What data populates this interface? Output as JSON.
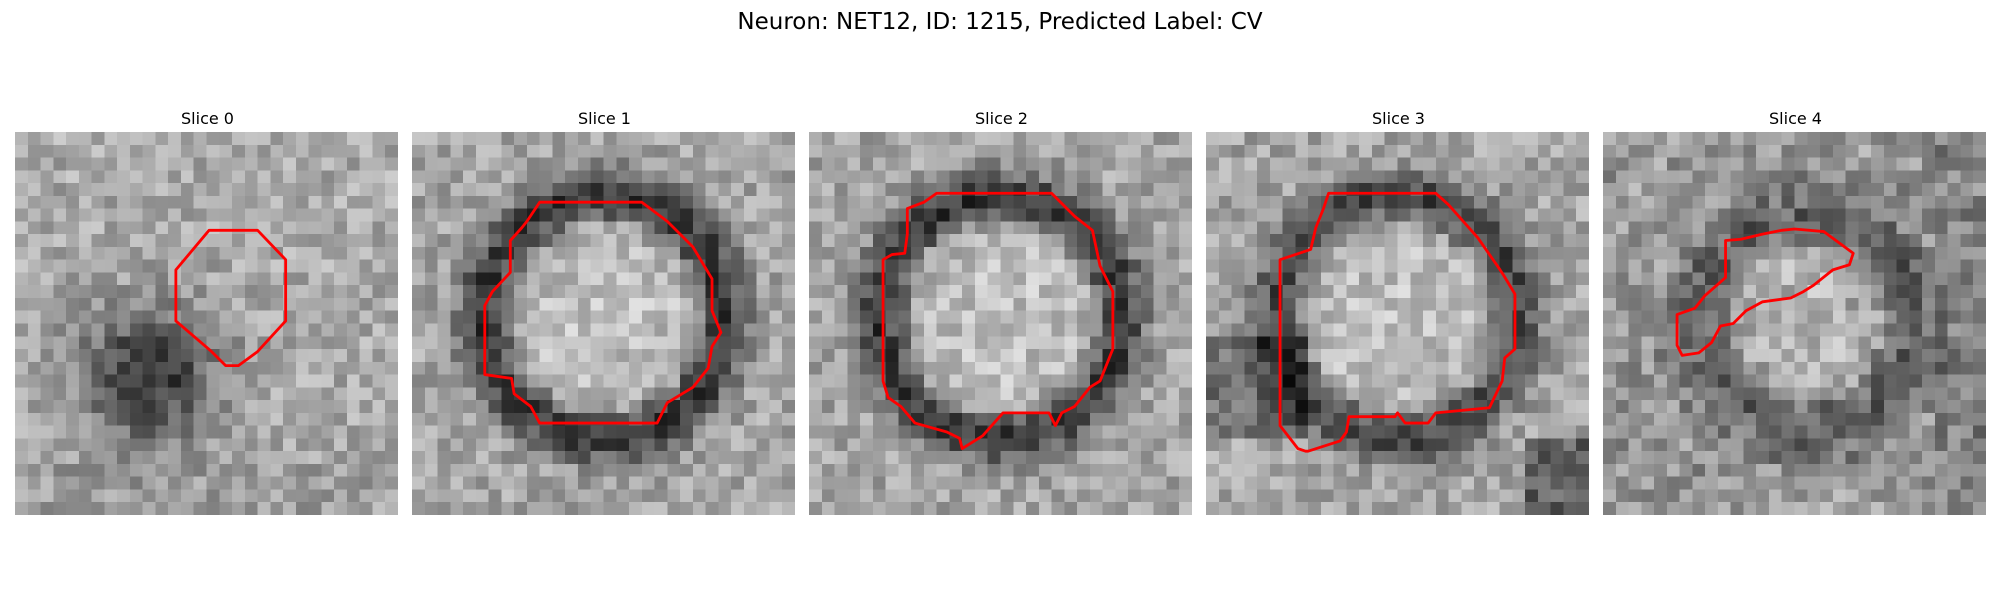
{
  "figure": {
    "title": "Neuron: NET12, ID: 1215, Predicted Label: CV",
    "contour_color": "#ff0000",
    "panels": [
      {
        "title": "Slice 0",
        "pattern": "dark-blob-lower-left"
      },
      {
        "title": "Slice 1",
        "pattern": "dark-ring"
      },
      {
        "title": "Slice 2",
        "pattern": "dark-ring"
      },
      {
        "title": "Slice 3",
        "pattern": "dark-ring-open"
      },
      {
        "title": "Slice 4",
        "pattern": "faint-ring"
      }
    ]
  }
}
